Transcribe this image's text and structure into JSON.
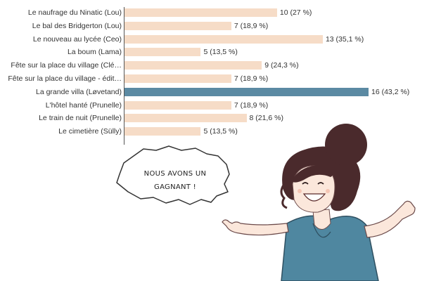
{
  "chart_data": {
    "type": "bar",
    "orientation": "horizontal",
    "categories": [
      "Le naufrage du Ninatic (Lou)",
      "Le bal des Bridgerton (Lou)",
      "Le nouveau au lycée (Ceo)",
      "La boum (Lama)",
      "Fête sur la place du village (Clé…",
      "Fête sur la place du village - édit…",
      "La grande villa (Løvetand)",
      "L'hôtel hanté (Prunelle)",
      "Le train de nuit (Prunelle)",
      "Le cimetière (Sülly)"
    ],
    "values": [
      10,
      7,
      13,
      5,
      9,
      7,
      16,
      7,
      8,
      5
    ],
    "value_labels": [
      "10 (27 %)",
      "7 (18,9 %)",
      "13 (35,1 %)",
      "5 (13,5 %)",
      "9 (24,3 %)",
      "7 (18,9 %)",
      "16 (43,2 %)",
      "7 (18,9 %)",
      "8 (21,6 %)",
      "5 (13,5 %)"
    ],
    "xlim": [
      0,
      16
    ],
    "grid": false,
    "bar_color": "#f6dcc7",
    "highlight_color": "#5b8aa3",
    "highlight_index": 6
  },
  "speech_bubble": {
    "line1": "NOUS AVONS UN",
    "line2": "GAGNANT !"
  },
  "illustration": {
    "icon": "cartoon-woman-cheering",
    "dress_color": "#4f87a0",
    "hair_color": "#4a2a2c",
    "skin_color": "#fbe7db"
  }
}
